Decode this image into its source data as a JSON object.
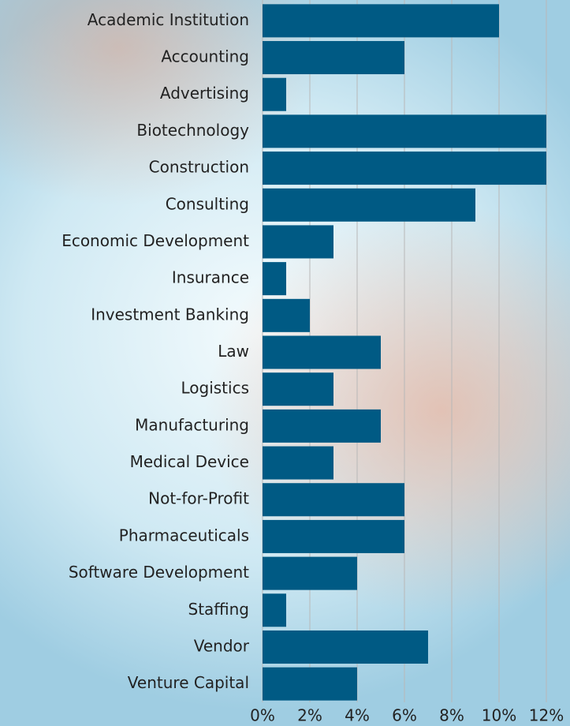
{
  "chart_data": {
    "type": "bar",
    "orientation": "horizontal",
    "categories": [
      "Academic Institution",
      "Accounting",
      "Advertising",
      "Biotechnology",
      "Construction",
      "Consulting",
      "Economic Development",
      "Insurance",
      "Investment Banking",
      "Law",
      "Logistics",
      "Manufacturing",
      "Medical Device",
      "Not-for-Profit",
      "Pharmaceuticals",
      "Software Development",
      "Staffing",
      "Vendor",
      "Venture Capital"
    ],
    "values": [
      10,
      6,
      1,
      12,
      12,
      9,
      3,
      1,
      2,
      5,
      3,
      5,
      3,
      6,
      6,
      4,
      1,
      7,
      4
    ],
    "color": "#005a84",
    "xlim": [
      0,
      12
    ],
    "xticks": [
      {
        "value": 0,
        "label": "0%"
      },
      {
        "value": 2,
        "label": "2%"
      },
      {
        "value": 4,
        "label": "4%"
      },
      {
        "value": 6,
        "label": "6%"
      },
      {
        "value": 8,
        "label": "8%"
      },
      {
        "value": 10,
        "label": "10%"
      },
      {
        "value": 12,
        "label": "12%"
      }
    ],
    "grid": true
  }
}
